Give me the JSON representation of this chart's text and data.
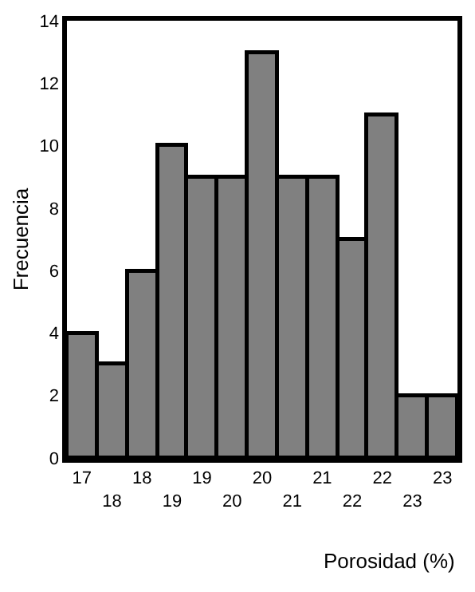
{
  "chart_data": {
    "type": "bar",
    "ylabel": "Frecuencia",
    "xlabel": "Porosidad (%)",
    "categories": [
      "17",
      "18",
      "18",
      "19",
      "19",
      "20",
      "20",
      "21",
      "21",
      "22",
      "22",
      "23",
      "23"
    ],
    "values": [
      4,
      3,
      6,
      10,
      9,
      9,
      13,
      9,
      9,
      7,
      11,
      2,
      2
    ],
    "color": "#808080",
    "ylim": [
      0,
      14
    ],
    "yticks": [
      0,
      2,
      4,
      6,
      8,
      10,
      12,
      14
    ]
  }
}
